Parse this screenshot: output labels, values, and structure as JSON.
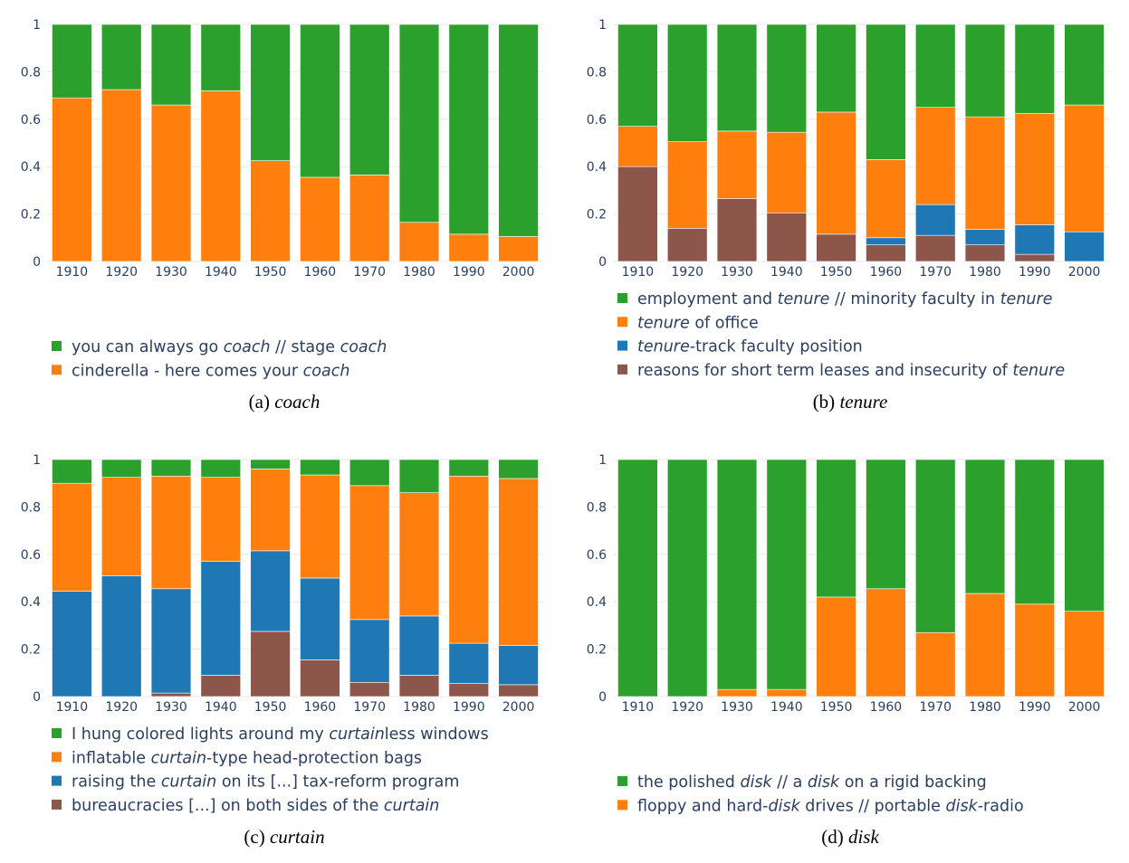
{
  "colors": {
    "green": "#2ca02c",
    "orange": "#ff7f0e",
    "blue": "#1f77b4",
    "brown": "#8c564b"
  },
  "chart_data": [
    {
      "type": "bar",
      "stacked": true,
      "caption_prefix": "(a)",
      "caption_word": "coach",
      "categories": [
        "1910",
        "1920",
        "1930",
        "1940",
        "1950",
        "1960",
        "1970",
        "1980",
        "1990",
        "2000"
      ],
      "ylim": [
        0,
        1
      ],
      "yticks": [
        "0",
        "0.2",
        "0.4",
        "0.6",
        "0.8",
        "1"
      ],
      "series": [
        {
          "color": "orange",
          "values": [
            0.69,
            0.725,
            0.66,
            0.72,
            0.425,
            0.355,
            0.365,
            0.165,
            0.115,
            0.105
          ]
        },
        {
          "color": "green",
          "values": [
            0.31,
            0.275,
            0.34,
            0.28,
            0.575,
            0.645,
            0.635,
            0.835,
            0.885,
            0.895
          ]
        }
      ],
      "legend": [
        {
          "color": "green",
          "text": [
            [
              "you can always go ",
              false
            ],
            [
              "coach",
              true
            ],
            [
              " // stage ",
              false
            ],
            [
              "coach",
              true
            ]
          ]
        },
        {
          "color": "orange",
          "text": [
            [
              "cinderella - here comes your ",
              false
            ],
            [
              "coach",
              true
            ]
          ]
        }
      ]
    },
    {
      "type": "bar",
      "stacked": true,
      "caption_prefix": "(b)",
      "caption_word": "tenure",
      "categories": [
        "1910",
        "1920",
        "1930",
        "1940",
        "1950",
        "1960",
        "1970",
        "1980",
        "1990",
        "2000"
      ],
      "ylim": [
        0,
        1
      ],
      "yticks": [
        "0",
        "0.2",
        "0.4",
        "0.6",
        "0.8",
        "1"
      ],
      "series": [
        {
          "color": "brown",
          "values": [
            0.4,
            0.14,
            0.265,
            0.205,
            0.115,
            0.07,
            0.11,
            0.07,
            0.03,
            0.0
          ]
        },
        {
          "color": "blue",
          "values": [
            0.0,
            0.0,
            0.0,
            0.0,
            0.0,
            0.03,
            0.13,
            0.065,
            0.125,
            0.125
          ]
        },
        {
          "color": "orange",
          "values": [
            0.17,
            0.365,
            0.285,
            0.34,
            0.515,
            0.33,
            0.41,
            0.475,
            0.47,
            0.535
          ]
        },
        {
          "color": "green",
          "values": [
            0.43,
            0.495,
            0.45,
            0.455,
            0.37,
            0.57,
            0.35,
            0.39,
            0.375,
            0.34
          ]
        }
      ],
      "legend": [
        {
          "color": "green",
          "text": [
            [
              "employment and ",
              false
            ],
            [
              "tenure",
              true
            ],
            [
              " // minority faculty in ",
              false
            ],
            [
              "tenure",
              true
            ]
          ]
        },
        {
          "color": "orange",
          "text": [
            [
              "tenure",
              true
            ],
            [
              " of office",
              false
            ]
          ]
        },
        {
          "color": "blue",
          "text": [
            [
              "tenure",
              true
            ],
            [
              "-track faculty position",
              false
            ]
          ]
        },
        {
          "color": "brown",
          "text": [
            [
              "reasons for short term leases and insecurity of ",
              false
            ],
            [
              "tenure",
              true
            ]
          ]
        }
      ]
    },
    {
      "type": "bar",
      "stacked": true,
      "caption_prefix": "(c)",
      "caption_word": "curtain",
      "categories": [
        "1910",
        "1920",
        "1930",
        "1940",
        "1950",
        "1960",
        "1970",
        "1980",
        "1990",
        "2000"
      ],
      "ylim": [
        0,
        1
      ],
      "yticks": [
        "0",
        "0.2",
        "0.4",
        "0.6",
        "0.8",
        "1"
      ],
      "series": [
        {
          "color": "brown",
          "values": [
            0.0,
            0.0,
            0.015,
            0.09,
            0.275,
            0.155,
            0.06,
            0.09,
            0.055,
            0.05
          ]
        },
        {
          "color": "blue",
          "values": [
            0.445,
            0.51,
            0.44,
            0.48,
            0.34,
            0.345,
            0.265,
            0.25,
            0.17,
            0.165
          ]
        },
        {
          "color": "orange",
          "values": [
            0.455,
            0.415,
            0.475,
            0.355,
            0.345,
            0.435,
            0.565,
            0.52,
            0.705,
            0.705
          ]
        },
        {
          "color": "green",
          "values": [
            0.1,
            0.075,
            0.07,
            0.075,
            0.04,
            0.065,
            0.11,
            0.14,
            0.07,
            0.08
          ]
        }
      ],
      "legend": [
        {
          "color": "green",
          "text": [
            [
              "I hung colored lights around my ",
              false
            ],
            [
              "curtain",
              true
            ],
            [
              "less windows",
              false
            ]
          ]
        },
        {
          "color": "orange",
          "text": [
            [
              "inflatable ",
              false
            ],
            [
              "curtain",
              true
            ],
            [
              "-type head-protection bags",
              false
            ]
          ]
        },
        {
          "color": "blue",
          "text": [
            [
              "raising the ",
              false
            ],
            [
              "curtain",
              true
            ],
            [
              " on its [...] tax-reform program",
              false
            ]
          ]
        },
        {
          "color": "brown",
          "text": [
            [
              "bureaucracies [...] on both sides of the ",
              false
            ],
            [
              "curtain",
              true
            ]
          ]
        }
      ]
    },
    {
      "type": "bar",
      "stacked": true,
      "caption_prefix": "(d)",
      "caption_word": "disk",
      "categories": [
        "1910",
        "1920",
        "1930",
        "1940",
        "1950",
        "1960",
        "1970",
        "1980",
        "1990",
        "2000"
      ],
      "ylim": [
        0,
        1
      ],
      "yticks": [
        "0",
        "0.2",
        "0.4",
        "0.6",
        "0.8",
        "1"
      ],
      "series": [
        {
          "color": "orange",
          "values": [
            0.0,
            0.0,
            0.03,
            0.03,
            0.42,
            0.455,
            0.27,
            0.435,
            0.39,
            0.36
          ]
        },
        {
          "color": "green",
          "values": [
            1.0,
            1.0,
            0.97,
            0.97,
            0.58,
            0.545,
            0.73,
            0.565,
            0.61,
            0.64
          ]
        }
      ],
      "legend": [
        {
          "color": "green",
          "text": [
            [
              "the polished ",
              false
            ],
            [
              "disk",
              true
            ],
            [
              " // a ",
              false
            ],
            [
              "disk",
              true
            ],
            [
              " on a rigid backing",
              false
            ]
          ]
        },
        {
          "color": "orange",
          "text": [
            [
              "floppy and hard-",
              false
            ],
            [
              "disk",
              true
            ],
            [
              " drives // portable ",
              false
            ],
            [
              "disk",
              true
            ],
            [
              "-radio",
              false
            ]
          ]
        }
      ]
    }
  ]
}
